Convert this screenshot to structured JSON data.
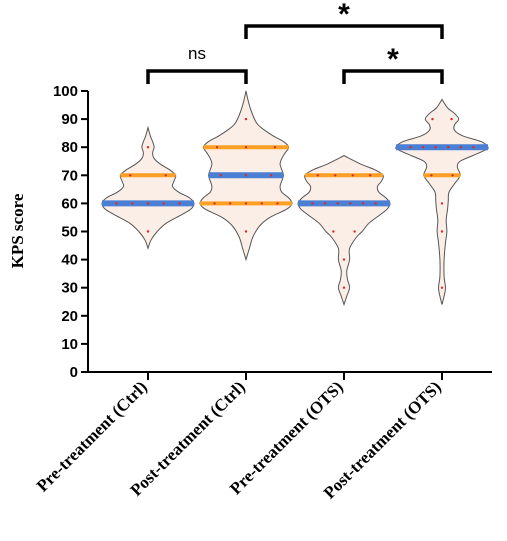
{
  "chart_data": {
    "type": "violin",
    "ylabel": "KPS score",
    "ylim": [
      0,
      100
    ],
    "yticks": [
      0,
      10,
      20,
      30,
      40,
      50,
      60,
      70,
      80,
      90,
      100
    ],
    "categories": [
      "Pre-treatment (Ctrl)",
      "Post-treatment (Ctrl)",
      "Pre-treatment (OTS)",
      "Post-treatment (OTS)"
    ],
    "colors": {
      "outline": "#555555",
      "fill": "#fbeee6",
      "quartile": "#ffa024",
      "median": "#4a7fd4",
      "points": "#d92b2b"
    },
    "groups": [
      {
        "name": "Pre-treatment (Ctrl)",
        "range": [
          44,
          87
        ],
        "median": 60,
        "quartiles": [
          60,
          70
        ],
        "density": [
          [
            44,
            0
          ],
          [
            47,
            2
          ],
          [
            50,
            6
          ],
          [
            53,
            12
          ],
          [
            56,
            22
          ],
          [
            58,
            28
          ],
          [
            60,
            30
          ],
          [
            62,
            27
          ],
          [
            64,
            20
          ],
          [
            66,
            16
          ],
          [
            68,
            17
          ],
          [
            70,
            18
          ],
          [
            72,
            14
          ],
          [
            74,
            8
          ],
          [
            76,
            4
          ],
          [
            78,
            3
          ],
          [
            80,
            4
          ],
          [
            82,
            3
          ],
          [
            84,
            1.5
          ],
          [
            87,
            0
          ]
        ],
        "points": [
          50,
          60,
          60,
          60,
          60,
          60,
          70,
          70,
          80
        ]
      },
      {
        "name": "Post-treatment (Ctrl)",
        "range": [
          40,
          100
        ],
        "median": 70,
        "quartiles": [
          60,
          80
        ],
        "density": [
          [
            40,
            0
          ],
          [
            44,
            2
          ],
          [
            48,
            4
          ],
          [
            52,
            8
          ],
          [
            55,
            14
          ],
          [
            58,
            24
          ],
          [
            60,
            27
          ],
          [
            62,
            25
          ],
          [
            64,
            21
          ],
          [
            66,
            20
          ],
          [
            68,
            21
          ],
          [
            70,
            22
          ],
          [
            72,
            21
          ],
          [
            74,
            20
          ],
          [
            76,
            21
          ],
          [
            78,
            23
          ],
          [
            80,
            25
          ],
          [
            82,
            22
          ],
          [
            84,
            16
          ],
          [
            86,
            11
          ],
          [
            88,
            7
          ],
          [
            90,
            5
          ],
          [
            93,
            3
          ],
          [
            96,
            1.5
          ],
          [
            100,
            0
          ]
        ],
        "points": [
          50,
          60,
          60,
          60,
          60,
          60,
          70,
          70,
          70,
          80,
          80,
          80,
          90
        ]
      },
      {
        "name": "Pre-treatment (OTS)",
        "range": [
          24,
          77
        ],
        "median": 60,
        "quartiles": [
          60,
          70
        ],
        "density": [
          [
            24,
            0
          ],
          [
            27,
            2
          ],
          [
            30,
            4
          ],
          [
            33,
            2.5
          ],
          [
            36,
            2
          ],
          [
            40,
            4
          ],
          [
            44,
            4
          ],
          [
            48,
            9
          ],
          [
            50,
            13
          ],
          [
            53,
            18
          ],
          [
            56,
            26
          ],
          [
            58,
            31
          ],
          [
            60,
            33
          ],
          [
            62,
            30
          ],
          [
            64,
            25
          ],
          [
            66,
            24
          ],
          [
            68,
            27
          ],
          [
            70,
            28
          ],
          [
            72,
            22
          ],
          [
            74,
            12
          ],
          [
            77,
            0
          ]
        ],
        "points": [
          30,
          40,
          50,
          50,
          60,
          60,
          60,
          60,
          60,
          60,
          70,
          70,
          70,
          70
        ]
      },
      {
        "name": "Post-treatment (OTS)",
        "range": [
          24,
          97
        ],
        "median": 80,
        "quartiles": [
          70,
          80
        ],
        "density": [
          [
            24,
            0
          ],
          [
            27,
            1.5
          ],
          [
            30,
            2.5
          ],
          [
            34,
            1.5
          ],
          [
            40,
            1.5
          ],
          [
            46,
            2.5
          ],
          [
            50,
            3.5
          ],
          [
            54,
            3
          ],
          [
            58,
            4
          ],
          [
            61,
            4.5
          ],
          [
            64,
            5
          ],
          [
            67,
            9
          ],
          [
            70,
            13
          ],
          [
            73,
            11
          ],
          [
            75,
            13
          ],
          [
            77,
            22
          ],
          [
            79,
            31
          ],
          [
            80,
            33
          ],
          [
            82,
            28
          ],
          [
            84,
            15
          ],
          [
            86,
            9
          ],
          [
            88,
            9
          ],
          [
            90,
            12
          ],
          [
            92,
            9
          ],
          [
            94,
            4
          ],
          [
            97,
            0
          ]
        ],
        "points": [
          30,
          50,
          60,
          70,
          70,
          80,
          80,
          80,
          80,
          80,
          80,
          90,
          90
        ]
      }
    ],
    "significance": [
      {
        "from": 0,
        "to": 1,
        "label": "ns"
      },
      {
        "from": 2,
        "to": 3,
        "label": "*"
      },
      {
        "from": 1,
        "to": 3,
        "label": "*"
      }
    ]
  }
}
